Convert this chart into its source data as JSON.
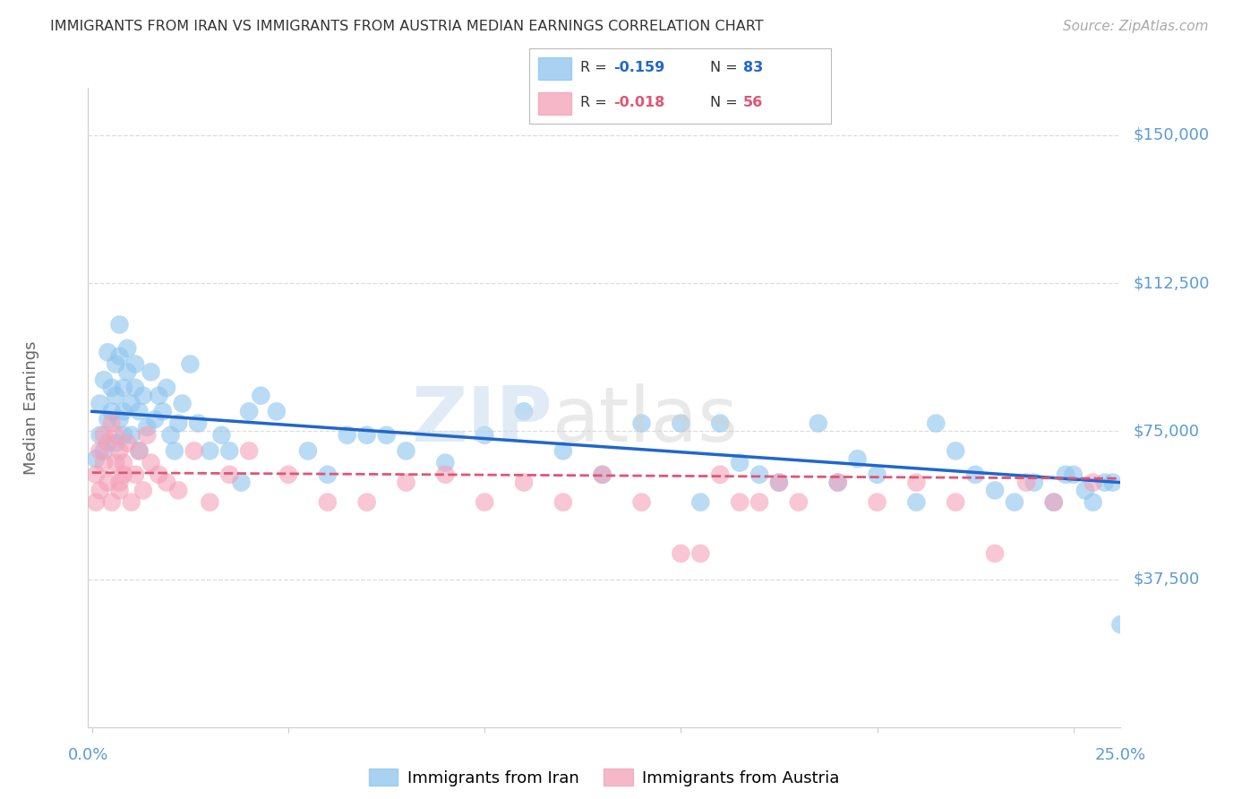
{
  "title": "IMMIGRANTS FROM IRAN VS IMMIGRANTS FROM AUSTRIA MEDIAN EARNINGS CORRELATION CHART",
  "source_text": "Source: ZipAtlas.com",
  "ylabel": "Median Earnings",
  "ytick_labels": [
    "$150,000",
    "$112,500",
    "$75,000",
    "$37,500"
  ],
  "ytick_values": [
    150000,
    112500,
    75000,
    37500
  ],
  "ymin": 0,
  "ymax": 162000,
  "xmin": -0.001,
  "xmax": 0.262,
  "watermark_zip": "ZIP",
  "watermark_atlas": "atlas",
  "legend_iran_R": "-0.159",
  "legend_iran_N": "83",
  "legend_austria_R": "-0.018",
  "legend_austria_N": "56",
  "iran_color": "#8DC4EE",
  "austria_color": "#F4A0B8",
  "iran_line_color": "#2166CC",
  "austria_line_color": "#E05575",
  "iran_scatter_x": [
    0.001,
    0.002,
    0.002,
    0.003,
    0.003,
    0.004,
    0.004,
    0.005,
    0.005,
    0.006,
    0.006,
    0.006,
    0.007,
    0.007,
    0.007,
    0.008,
    0.008,
    0.008,
    0.009,
    0.009,
    0.01,
    0.01,
    0.011,
    0.011,
    0.012,
    0.012,
    0.013,
    0.014,
    0.015,
    0.016,
    0.017,
    0.018,
    0.019,
    0.02,
    0.021,
    0.022,
    0.023,
    0.025,
    0.027,
    0.03,
    0.033,
    0.035,
    0.038,
    0.04,
    0.043,
    0.047,
    0.055,
    0.06,
    0.065,
    0.07,
    0.075,
    0.08,
    0.09,
    0.1,
    0.11,
    0.12,
    0.13,
    0.14,
    0.15,
    0.155,
    0.16,
    0.165,
    0.17,
    0.175,
    0.185,
    0.19,
    0.195,
    0.2,
    0.21,
    0.215,
    0.22,
    0.225,
    0.23,
    0.235,
    0.24,
    0.245,
    0.248,
    0.25,
    0.253,
    0.255,
    0.258,
    0.26,
    0.262
  ],
  "iran_scatter_y": [
    68000,
    74000,
    82000,
    70000,
    88000,
    78000,
    95000,
    86000,
    80000,
    72000,
    84000,
    92000,
    78000,
    94000,
    102000,
    86000,
    80000,
    74000,
    96000,
    90000,
    82000,
    74000,
    92000,
    86000,
    80000,
    70000,
    84000,
    76000,
    90000,
    78000,
    84000,
    80000,
    86000,
    74000,
    70000,
    77000,
    82000,
    92000,
    77000,
    70000,
    74000,
    70000,
    62000,
    80000,
    84000,
    80000,
    70000,
    64000,
    74000,
    74000,
    74000,
    70000,
    67000,
    74000,
    80000,
    70000,
    64000,
    77000,
    77000,
    57000,
    77000,
    67000,
    64000,
    62000,
    77000,
    62000,
    68000,
    64000,
    57000,
    77000,
    70000,
    64000,
    60000,
    57000,
    62000,
    57000,
    64000,
    64000,
    60000,
    57000,
    62000,
    62000,
    26000
  ],
  "austria_scatter_x": [
    0.001,
    0.001,
    0.002,
    0.002,
    0.003,
    0.003,
    0.004,
    0.004,
    0.005,
    0.005,
    0.006,
    0.006,
    0.007,
    0.007,
    0.007,
    0.008,
    0.008,
    0.009,
    0.01,
    0.011,
    0.012,
    0.013,
    0.014,
    0.015,
    0.017,
    0.019,
    0.022,
    0.026,
    0.03,
    0.035,
    0.04,
    0.05,
    0.06,
    0.07,
    0.08,
    0.09,
    0.1,
    0.11,
    0.12,
    0.13,
    0.14,
    0.15,
    0.155,
    0.16,
    0.165,
    0.17,
    0.175,
    0.18,
    0.19,
    0.2,
    0.21,
    0.22,
    0.23,
    0.238,
    0.245,
    0.255
  ],
  "austria_scatter_y": [
    57000,
    64000,
    60000,
    70000,
    67000,
    74000,
    72000,
    62000,
    57000,
    77000,
    67000,
    74000,
    62000,
    70000,
    60000,
    64000,
    67000,
    72000,
    57000,
    64000,
    70000,
    60000,
    74000,
    67000,
    64000,
    62000,
    60000,
    70000,
    57000,
    64000,
    70000,
    64000,
    57000,
    57000,
    62000,
    64000,
    57000,
    62000,
    57000,
    64000,
    57000,
    44000,
    44000,
    64000,
    57000,
    57000,
    62000,
    57000,
    62000,
    57000,
    62000,
    57000,
    44000,
    62000,
    57000,
    62000
  ],
  "iran_trendline_x": [
    0.0,
    0.262
  ],
  "iran_trendline_y": [
    80000,
    62000
  ],
  "austria_trendline_x": [
    0.0,
    0.262
  ],
  "austria_trendline_y": [
    64500,
    63000
  ],
  "background_color": "#ffffff",
  "grid_color": "#dddddd",
  "title_color": "#333333",
  "axis_label_color": "#5B9BD5",
  "source_color": "#aaaaaa",
  "ylabel_color": "#666666"
}
